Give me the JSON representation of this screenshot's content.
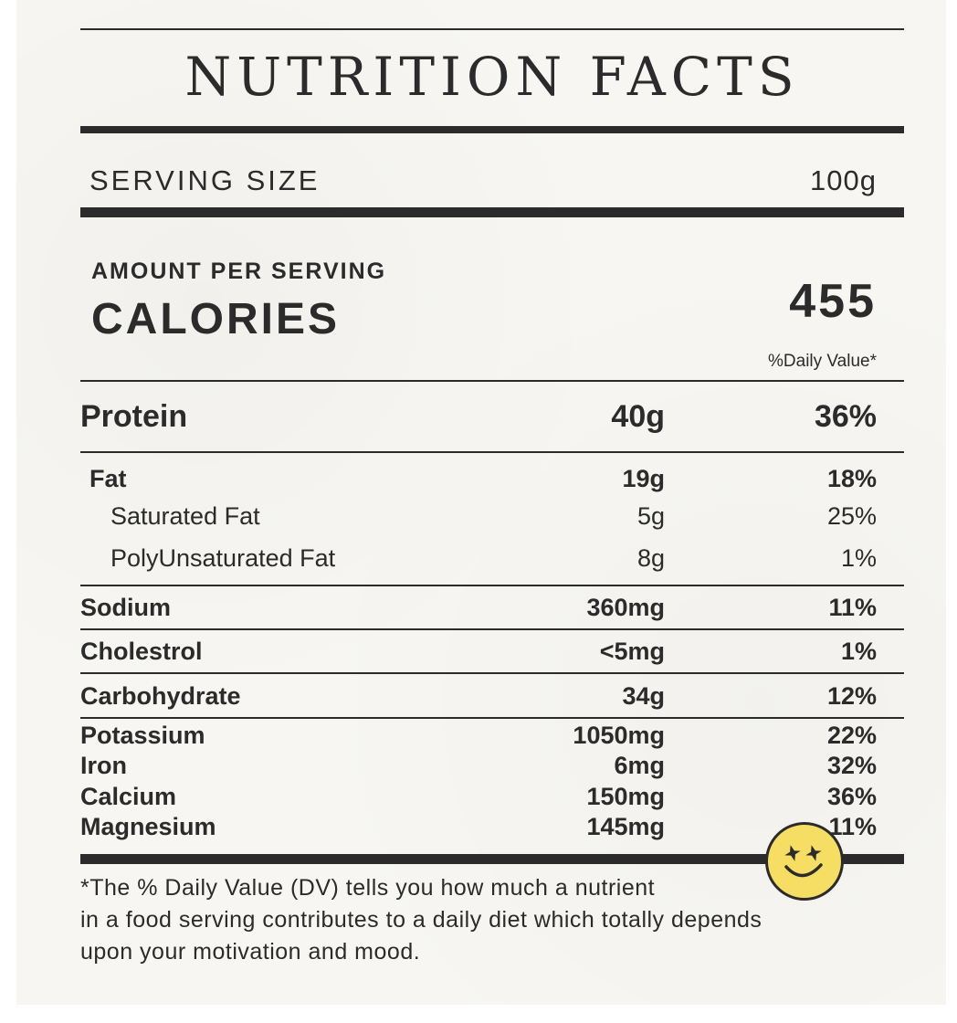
{
  "title": "NUTRITION FACTS",
  "serving": {
    "label": "SERVING SIZE",
    "value": "100g"
  },
  "amount_per_serving": "AMOUNT PER SERVING",
  "calories": {
    "label": "CALORIES",
    "value": "455"
  },
  "daily_value_header": "%Daily Value*",
  "rows": [
    {
      "label": "Protein",
      "amount": "40g",
      "dv": "36%"
    },
    {
      "label": "Fat",
      "amount": "19g",
      "dv": "18%"
    },
    {
      "label": "Saturated Fat",
      "amount": "5g",
      "dv": "25%"
    },
    {
      "label": "PolyUnsaturated Fat",
      "amount": "8g",
      "dv": "1%"
    },
    {
      "label": "Sodium",
      "amount": "360mg",
      "dv": "11%"
    },
    {
      "label": "Cholestrol",
      "amount": "<5mg",
      "dv": "1%"
    },
    {
      "label": "Carbohydrate",
      "amount": "34g",
      "dv": "12%"
    },
    {
      "label": "Potassium",
      "amount": "1050mg",
      "dv": "22%"
    },
    {
      "label": "Iron",
      "amount": "6mg",
      "dv": "32%"
    },
    {
      "label": "Calcium",
      "amount": "150mg",
      "dv": "36%"
    },
    {
      "label": "Magnesium",
      "amount": "145mg",
      "dv": "11%"
    }
  ],
  "footnote": {
    "line1": "*The % Daily Value (DV) tells you how much a nutrient",
    "line2": "in a food serving contributes to a daily diet which totally depends",
    "line3": "upon your motivation and mood."
  },
  "badge_icon": "star-eyes-smiley-icon",
  "colors": {
    "ink": "#2b2b2b",
    "paper": "#f7f6f2",
    "badge": "#f6dd63"
  }
}
